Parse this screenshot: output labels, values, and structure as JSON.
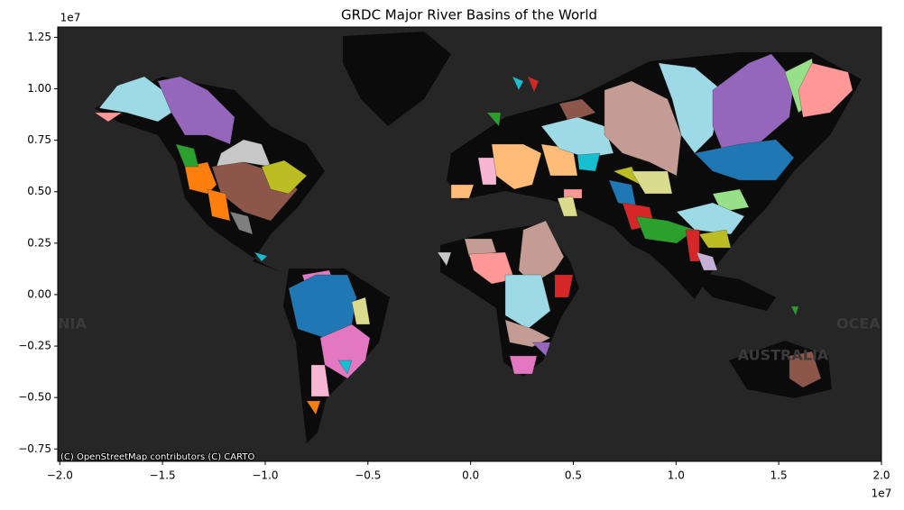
{
  "map": {
    "title": "GRDC Major River Basins of the World",
    "xlim": [
      -20100000,
      20000000
    ],
    "ylim": [
      -8100000,
      13000000
    ],
    "xticks": [
      {
        "value": -20000000,
        "label": "−2.0"
      },
      {
        "value": -15000000,
        "label": "−1.5"
      },
      {
        "value": -10000000,
        "label": "−1.0"
      },
      {
        "value": -5000000,
        "label": "−0.5"
      },
      {
        "value": 0,
        "label": "0.0"
      },
      {
        "value": 5000000,
        "label": "0.5"
      },
      {
        "value": 10000000,
        "label": "1.0"
      },
      {
        "value": 15000000,
        "label": "1.5"
      },
      {
        "value": 20000000,
        "label": "2.0"
      }
    ],
    "yticks": [
      {
        "value": 12500000,
        "label": "1.25"
      },
      {
        "value": 10000000,
        "label": "1.00"
      },
      {
        "value": 7500000,
        "label": "0.75"
      },
      {
        "value": 5000000,
        "label": "0.50"
      },
      {
        "value": 2500000,
        "label": "0.25"
      },
      {
        "value": 0,
        "label": "0.00"
      },
      {
        "value": -2500000,
        "label": "−0.25"
      },
      {
        "value": -5000000,
        "label": "−0.50"
      },
      {
        "value": -7500000,
        "label": "−0.75"
      }
    ],
    "x_offset": "1e7",
    "y_offset": "1e7",
    "place_labels": [
      "AUSTRALIA",
      "OCEAN",
      "NIA"
    ],
    "attribution": "(C) OpenStreetMap contributors (C) CARTO"
  }
}
